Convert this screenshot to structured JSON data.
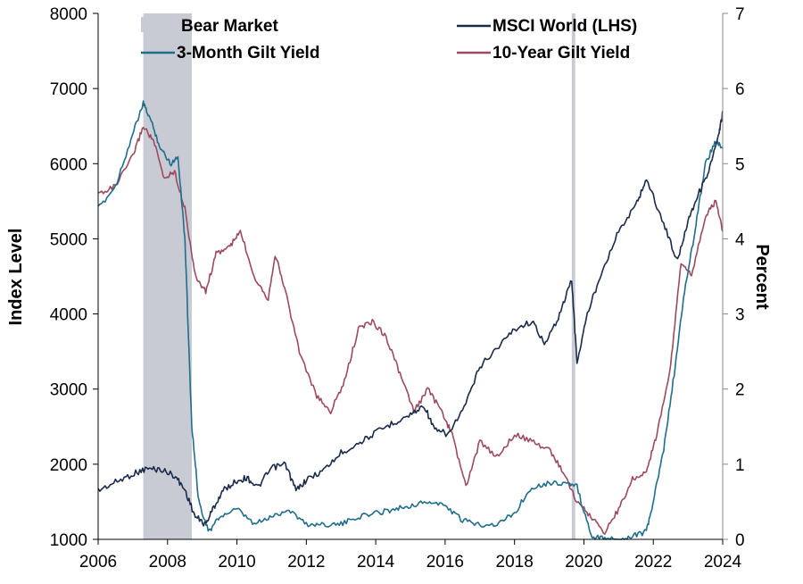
{
  "chart_data": {
    "type": "line",
    "title": "",
    "x_axis": {
      "ticks": [
        "2006",
        "2008",
        "2010",
        "2012",
        "2014",
        "2016",
        "2018",
        "2020",
        "2022",
        "2024"
      ],
      "range": [
        2006,
        2024
      ]
    },
    "y_left": {
      "label": "Index Level",
      "range": [
        1000,
        8000
      ],
      "ticks": [
        "1000",
        "2000",
        "3000",
        "4000",
        "5000",
        "6000",
        "7000",
        "8000"
      ]
    },
    "y_right": {
      "label": "Percent",
      "range": [
        0,
        7
      ],
      "ticks": [
        "0",
        "1",
        "2",
        "3",
        "4",
        "5",
        "6",
        "7"
      ]
    },
    "grid": false,
    "legend": {
      "placement": "top",
      "entries": [
        {
          "label": "Bear Market",
          "kind": "patch",
          "color": "#c9cbd4"
        },
        {
          "label": "MSCI World (LHS)",
          "kind": "line",
          "color": "#1a2a4a"
        },
        {
          "label": "3-Month Gilt Yield",
          "kind": "line",
          "color": "#1f6d8c"
        },
        {
          "label": "10-Year Gilt Yield",
          "kind": "line",
          "color": "#9c4a5e"
        }
      ]
    },
    "bear_markets": [
      {
        "start": 2007.3,
        "end": 2008.7
      },
      {
        "start": 2019.65,
        "end": 2019.75
      }
    ],
    "series": [
      {
        "name": "MSCI World (LHS)",
        "axis": "left",
        "color": "#1a2a4a",
        "points": [
          [
            2006.0,
            1650
          ],
          [
            2006.5,
            1760
          ],
          [
            2007.0,
            1870
          ],
          [
            2007.4,
            1940
          ],
          [
            2007.8,
            1930
          ],
          [
            2008.2,
            1850
          ],
          [
            2008.5,
            1660
          ],
          [
            2008.8,
            1300
          ],
          [
            2009.1,
            1200
          ],
          [
            2009.3,
            1400
          ],
          [
            2009.6,
            1650
          ],
          [
            2010.0,
            1780
          ],
          [
            2010.3,
            1820
          ],
          [
            2010.6,
            1690
          ],
          [
            2011.0,
            1950
          ],
          [
            2011.4,
            2000
          ],
          [
            2011.7,
            1650
          ],
          [
            2012.0,
            1790
          ],
          [
            2012.5,
            1920
          ],
          [
            2013.0,
            2150
          ],
          [
            2013.5,
            2280
          ],
          [
            2014.0,
            2420
          ],
          [
            2014.5,
            2550
          ],
          [
            2015.0,
            2660
          ],
          [
            2015.4,
            2780
          ],
          [
            2015.7,
            2450
          ],
          [
            2016.1,
            2400
          ],
          [
            2016.6,
            2800
          ],
          [
            2017.0,
            3300
          ],
          [
            2017.5,
            3550
          ],
          [
            2018.0,
            3800
          ],
          [
            2018.5,
            3900
          ],
          [
            2018.9,
            3600
          ],
          [
            2019.3,
            4000
          ],
          [
            2019.65,
            4450
          ],
          [
            2019.8,
            3350
          ],
          [
            2020.1,
            4000
          ],
          [
            2020.5,
            4550
          ],
          [
            2021.0,
            5100
          ],
          [
            2021.5,
            5450
          ],
          [
            2021.8,
            5800
          ],
          [
            2022.3,
            5200
          ],
          [
            2022.7,
            4700
          ],
          [
            2023.0,
            5250
          ],
          [
            2023.3,
            5600
          ],
          [
            2023.6,
            5900
          ],
          [
            2023.9,
            6400
          ],
          [
            2024.0,
            6700
          ]
        ]
      },
      {
        "name": "3-Month Gilt Yield",
        "axis": "right",
        "color": "#1f6d8c",
        "points": [
          [
            2006.0,
            4.4
          ],
          [
            2006.5,
            4.7
          ],
          [
            2007.0,
            5.4
          ],
          [
            2007.3,
            5.8
          ],
          [
            2007.5,
            5.6
          ],
          [
            2007.8,
            5.2
          ],
          [
            2008.1,
            5.0
          ],
          [
            2008.3,
            5.1
          ],
          [
            2008.5,
            4.0
          ],
          [
            2008.7,
            1.5
          ],
          [
            2008.9,
            0.5
          ],
          [
            2009.2,
            0.1
          ],
          [
            2009.5,
            0.3
          ],
          [
            2010.0,
            0.4
          ],
          [
            2010.5,
            0.2
          ],
          [
            2011.0,
            0.3
          ],
          [
            2011.5,
            0.4
          ],
          [
            2012.0,
            0.2
          ],
          [
            2012.5,
            0.2
          ],
          [
            2013.0,
            0.2
          ],
          [
            2013.5,
            0.3
          ],
          [
            2014.0,
            0.35
          ],
          [
            2014.5,
            0.4
          ],
          [
            2015.0,
            0.45
          ],
          [
            2015.5,
            0.5
          ],
          [
            2016.0,
            0.45
          ],
          [
            2016.5,
            0.25
          ],
          [
            2017.0,
            0.2
          ],
          [
            2017.5,
            0.2
          ],
          [
            2018.0,
            0.35
          ],
          [
            2018.5,
            0.7
          ],
          [
            2019.0,
            0.75
          ],
          [
            2019.5,
            0.75
          ],
          [
            2019.8,
            0.7
          ],
          [
            2020.2,
            0.05
          ],
          [
            2020.6,
            0.0
          ],
          [
            2021.0,
            0.0
          ],
          [
            2021.4,
            0.05
          ],
          [
            2021.8,
            0.1
          ],
          [
            2022.0,
            0.5
          ],
          [
            2022.3,
            1.2
          ],
          [
            2022.6,
            2.2
          ],
          [
            2022.9,
            3.3
          ],
          [
            2023.2,
            4.1
          ],
          [
            2023.5,
            5.0
          ],
          [
            2023.8,
            5.3
          ],
          [
            2024.0,
            5.2
          ]
        ]
      },
      {
        "name": "10-Year Gilt Yield",
        "axis": "right",
        "color": "#9c4a5e",
        "points": [
          [
            2006.0,
            4.6
          ],
          [
            2006.5,
            4.7
          ],
          [
            2007.0,
            5.1
          ],
          [
            2007.3,
            5.5
          ],
          [
            2007.6,
            5.3
          ],
          [
            2007.9,
            4.8
          ],
          [
            2008.2,
            4.9
          ],
          [
            2008.5,
            4.4
          ],
          [
            2008.8,
            3.5
          ],
          [
            2009.1,
            3.3
          ],
          [
            2009.4,
            3.8
          ],
          [
            2009.8,
            3.9
          ],
          [
            2010.1,
            4.1
          ],
          [
            2010.5,
            3.5
          ],
          [
            2010.9,
            3.2
          ],
          [
            2011.1,
            3.8
          ],
          [
            2011.4,
            3.3
          ],
          [
            2011.8,
            2.5
          ],
          [
            2012.3,
            1.9
          ],
          [
            2012.7,
            1.7
          ],
          [
            2013.1,
            2.1
          ],
          [
            2013.5,
            2.8
          ],
          [
            2013.9,
            2.9
          ],
          [
            2014.3,
            2.7
          ],
          [
            2014.7,
            2.2
          ],
          [
            2015.1,
            1.7
          ],
          [
            2015.5,
            2.0
          ],
          [
            2015.9,
            1.7
          ],
          [
            2016.2,
            1.4
          ],
          [
            2016.6,
            0.7
          ],
          [
            2017.0,
            1.3
          ],
          [
            2017.5,
            1.1
          ],
          [
            2018.0,
            1.4
          ],
          [
            2018.5,
            1.3
          ],
          [
            2019.0,
            1.2
          ],
          [
            2019.4,
            0.9
          ],
          [
            2019.8,
            0.5
          ],
          [
            2020.2,
            0.3
          ],
          [
            2020.6,
            0.1
          ],
          [
            2021.0,
            0.4
          ],
          [
            2021.4,
            0.8
          ],
          [
            2021.8,
            0.9
          ],
          [
            2022.1,
            1.4
          ],
          [
            2022.5,
            2.3
          ],
          [
            2022.8,
            3.7
          ],
          [
            2023.1,
            3.5
          ],
          [
            2023.5,
            4.3
          ],
          [
            2023.8,
            4.5
          ],
          [
            2024.0,
            4.1
          ]
        ]
      }
    ]
  }
}
